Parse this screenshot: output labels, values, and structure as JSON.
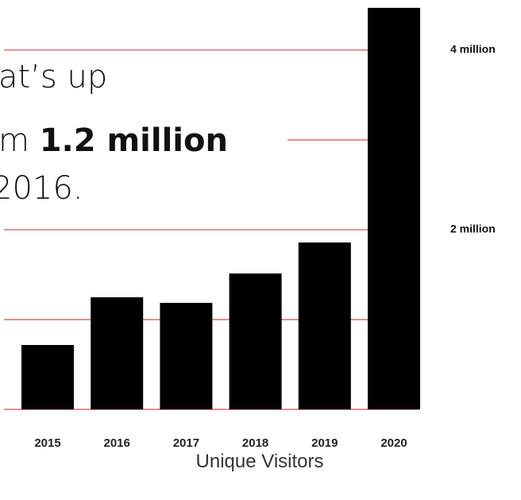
{
  "chart_data": {
    "type": "bar",
    "x_label": "Unique Visitors",
    "categories": [
      "2015",
      "2016",
      "2017",
      "2018",
      "2019",
      "2020"
    ],
    "values": [
      717000,
      1248000,
      1186000,
      1513000,
      1858000,
      4470000
    ],
    "color": "#000000",
    "grid_color": "#d0202a",
    "ylim": [
      0,
      4500000
    ],
    "yticks": [
      {
        "value": 0,
        "label": null
      },
      {
        "value": 1000000,
        "label": null
      },
      {
        "value": 2000000,
        "label": "2 million"
      },
      {
        "value": 3000000,
        "label": null
      },
      {
        "value": 4000000,
        "label": "4 million"
      }
    ],
    "grid": true,
    "annotation": {
      "line1": "at’s up",
      "line2_start": "m",
      "line2_bold": "1.2 million",
      "line3": "2016."
    }
  }
}
